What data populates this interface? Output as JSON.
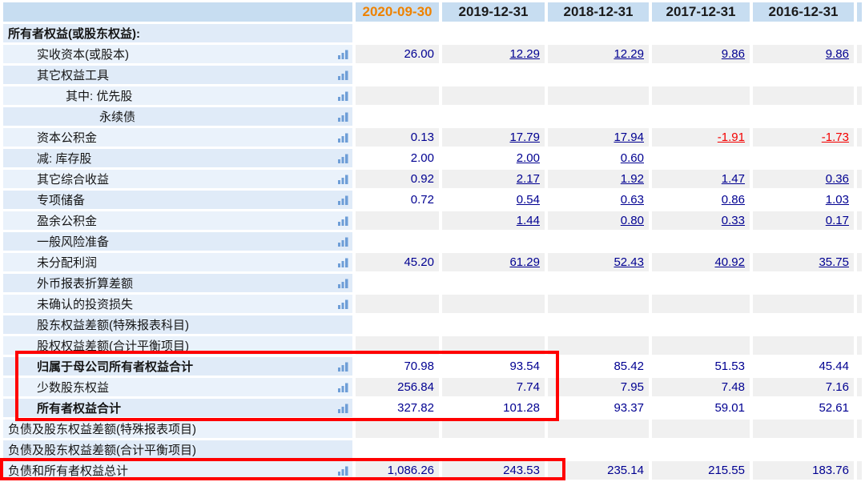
{
  "table": {
    "columns": [
      {
        "label": "",
        "current": false
      },
      {
        "label": "2020-09-30",
        "current": true
      },
      {
        "label": "2019-12-31",
        "current": false
      },
      {
        "label": "2018-12-31",
        "current": false
      },
      {
        "label": "2017-12-31",
        "current": false
      },
      {
        "label": "2016-12-31",
        "current": false
      }
    ],
    "current_column_color": "#ee8200",
    "icon_name": "bar-chart-icon",
    "rows": [
      {
        "label": "所有者权益(或股东权益):",
        "indent": 0,
        "bold": true,
        "icon": false,
        "links": false,
        "values": [
          "",
          "",
          "",
          "",
          ""
        ]
      },
      {
        "label": "实收资本(或股本)",
        "indent": 1,
        "bold": false,
        "icon": true,
        "links": true,
        "values": [
          "26.00",
          "12.29",
          "12.29",
          "9.86",
          "9.86"
        ]
      },
      {
        "label": "其它权益工具",
        "indent": 1,
        "bold": false,
        "icon": true,
        "links": false,
        "values": [
          "",
          "",
          "",
          "",
          ""
        ]
      },
      {
        "label": "其中: 优先股",
        "indent": 2,
        "bold": false,
        "icon": true,
        "links": false,
        "values": [
          "",
          "",
          "",
          "",
          ""
        ]
      },
      {
        "label": "永续债",
        "indent": 3,
        "bold": false,
        "icon": true,
        "links": false,
        "values": [
          "",
          "",
          "",
          "",
          ""
        ]
      },
      {
        "label": "资本公积金",
        "indent": 1,
        "bold": false,
        "icon": true,
        "links": true,
        "values": [
          "0.13",
          "17.79",
          "17.94",
          "-1.91",
          "-1.73"
        ]
      },
      {
        "label": "减: 库存股",
        "indent": 1,
        "bold": false,
        "icon": true,
        "links": true,
        "values": [
          "2.00",
          "2.00",
          "0.60",
          "",
          ""
        ]
      },
      {
        "label": "其它综合收益",
        "indent": 1,
        "bold": false,
        "icon": true,
        "links": true,
        "values": [
          "0.92",
          "2.17",
          "1.92",
          "1.47",
          "0.36"
        ]
      },
      {
        "label": "专项储备",
        "indent": 1,
        "bold": false,
        "icon": true,
        "links": true,
        "values": [
          "0.72",
          "0.54",
          "0.63",
          "0.86",
          "1.03"
        ]
      },
      {
        "label": "盈余公积金",
        "indent": 1,
        "bold": false,
        "icon": true,
        "links": true,
        "values": [
          "",
          "1.44",
          "0.80",
          "0.33",
          "0.17"
        ]
      },
      {
        "label": "一般风险准备",
        "indent": 1,
        "bold": false,
        "icon": true,
        "links": false,
        "values": [
          "",
          "",
          "",
          "",
          ""
        ]
      },
      {
        "label": "未分配利润",
        "indent": 1,
        "bold": false,
        "icon": true,
        "links": true,
        "values": [
          "45.20",
          "61.29",
          "52.43",
          "40.92",
          "35.75"
        ]
      },
      {
        "label": "外币报表折算差额",
        "indent": 1,
        "bold": false,
        "icon": true,
        "links": false,
        "values": [
          "",
          "",
          "",
          "",
          ""
        ]
      },
      {
        "label": "未确认的投资损失",
        "indent": 1,
        "bold": false,
        "icon": true,
        "links": false,
        "values": [
          "",
          "",
          "",
          "",
          ""
        ]
      },
      {
        "label": "股东权益差额(特殊报表科目)",
        "indent": 1,
        "bold": false,
        "icon": false,
        "links": false,
        "values": [
          "",
          "",
          "",
          "",
          ""
        ]
      },
      {
        "label": "股权权益差额(合计平衡项目)",
        "indent": 1,
        "bold": false,
        "icon": false,
        "links": false,
        "values": [
          "",
          "",
          "",
          "",
          ""
        ]
      },
      {
        "label": "归属于母公司所有者权益合计",
        "indent": 1,
        "bold": true,
        "icon": true,
        "links": false,
        "values": [
          "70.98",
          "93.54",
          "85.42",
          "51.53",
          "45.44"
        ]
      },
      {
        "label": "少数股东权益",
        "indent": 1,
        "bold": false,
        "icon": true,
        "links": false,
        "values": [
          "256.84",
          "7.74",
          "7.95",
          "7.48",
          "7.16"
        ]
      },
      {
        "label": "所有者权益合计",
        "indent": 1,
        "bold": true,
        "icon": true,
        "links": false,
        "values": [
          "327.82",
          "101.28",
          "93.37",
          "59.01",
          "52.61"
        ]
      },
      {
        "label": "负债及股东权益差额(特殊报表项目)",
        "indent": 0,
        "bold": false,
        "icon": false,
        "links": false,
        "values": [
          "",
          "",
          "",
          "",
          ""
        ]
      },
      {
        "label": "负债及股东权益差额(合计平衡项目)",
        "indent": 0,
        "bold": false,
        "icon": false,
        "links": false,
        "values": [
          "",
          "",
          "",
          "",
          ""
        ]
      },
      {
        "label": "负债和所有者权益总计",
        "indent": 0,
        "bold": false,
        "icon": true,
        "links": false,
        "values": [
          "1,086.26",
          "243.53",
          "235.14",
          "215.55",
          "183.76"
        ]
      }
    ]
  },
  "annotations": {
    "highlight_color": "#ff0000",
    "boxes": [
      {
        "name": "equity-totals-highlight",
        "rows_covered": [
          "归属于母公司所有者权益合计",
          "少数股东权益",
          "所有者权益合计"
        ]
      },
      {
        "name": "total-liabilities-and-equity-highlight",
        "rows_covered": [
          "负债和所有者权益总计"
        ]
      }
    ]
  },
  "styles": {
    "negative_color": "#f40000",
    "value_color": "#000091",
    "icon_bar_color": "#6e9ed7"
  }
}
